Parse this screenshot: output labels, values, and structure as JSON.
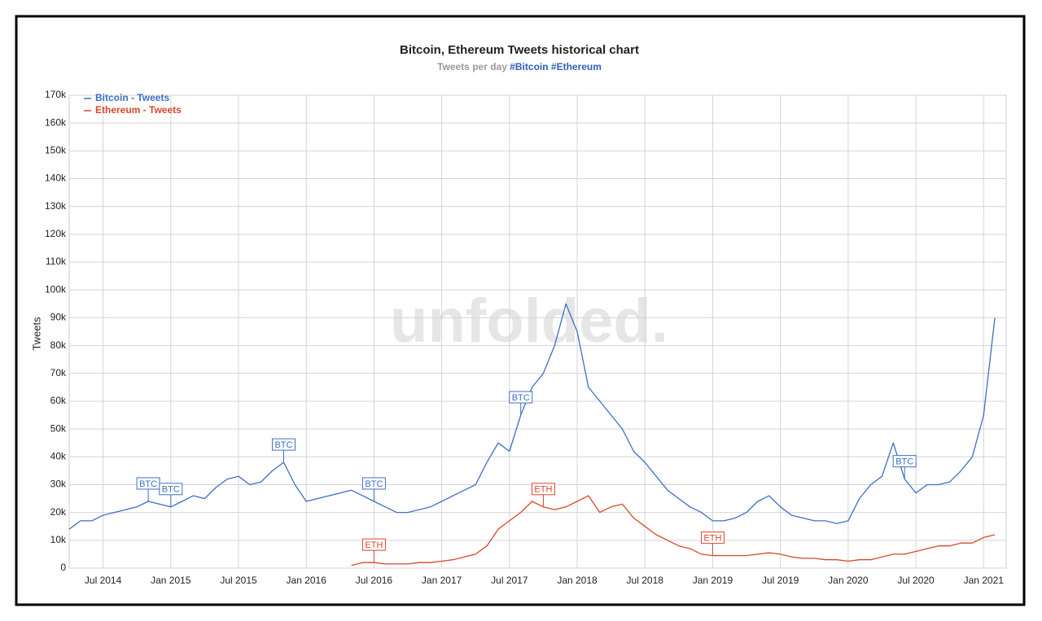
{
  "chart_data": {
    "type": "line",
    "title": "Bitcoin, Ethereum Tweets historical chart",
    "subtitle": "Tweets per day",
    "subtitle_tags": "#Bitcoin #Ethereum",
    "y_label": "Tweets",
    "watermark": "unfolded.",
    "grid": true,
    "legend": "top-left",
    "xlim": [
      "2014-04",
      "2021-03"
    ],
    "xticks": [
      {
        "value": "2014-07",
        "label": "Jul 2014"
      },
      {
        "value": "2015-01",
        "label": "Jan 2015"
      },
      {
        "value": "2015-07",
        "label": "Jul 2015"
      },
      {
        "value": "2016-01",
        "label": "Jan 2016"
      },
      {
        "value": "2016-07",
        "label": "Jul 2016"
      },
      {
        "value": "2017-01",
        "label": "Jan 2017"
      },
      {
        "value": "2017-07",
        "label": "Jul 2017"
      },
      {
        "value": "2018-01",
        "label": "Jan 2018"
      },
      {
        "value": "2018-07",
        "label": "Jul 2018"
      },
      {
        "value": "2019-01",
        "label": "Jan 2019"
      },
      {
        "value": "2019-07",
        "label": "Jul 2019"
      },
      {
        "value": "2020-01",
        "label": "Jan 2020"
      },
      {
        "value": "2020-07",
        "label": "Jul 2020"
      },
      {
        "value": "2021-01",
        "label": "Jan 2021"
      }
    ],
    "ylim": [
      0,
      170000
    ],
    "yticks": [
      0,
      {
        "value": 10000,
        "label": "10k"
      },
      {
        "value": 20000,
        "label": "20k"
      },
      {
        "value": 30000,
        "label": "30k"
      },
      {
        "value": 40000,
        "label": "40k"
      },
      {
        "value": 50000,
        "label": "50k"
      },
      {
        "value": 60000,
        "label": "60k"
      },
      {
        "value": 70000,
        "label": "70k"
      },
      {
        "value": 80000,
        "label": "80k"
      },
      {
        "value": 90000,
        "label": "90k"
      },
      {
        "value": 100000,
        "label": "100k"
      },
      {
        "value": 110000,
        "label": "110k"
      },
      {
        "value": 120000,
        "label": "120k"
      },
      {
        "value": 130000,
        "label": "130k"
      },
      {
        "value": 140000,
        "label": "140k"
      },
      {
        "value": 150000,
        "label": "150k"
      },
      {
        "value": 160000,
        "label": "160k"
      },
      {
        "value": 170000,
        "label": "170k"
      }
    ],
    "x": [
      "2014-04",
      "2014-05",
      "2014-06",
      "2014-07",
      "2014-08",
      "2014-09",
      "2014-10",
      "2014-11",
      "2014-12",
      "2015-01",
      "2015-02",
      "2015-03",
      "2015-04",
      "2015-05",
      "2015-06",
      "2015-07",
      "2015-08",
      "2015-09",
      "2015-10",
      "2015-11",
      "2015-12",
      "2016-01",
      "2016-02",
      "2016-03",
      "2016-04",
      "2016-05",
      "2016-06",
      "2016-07",
      "2016-08",
      "2016-09",
      "2016-10",
      "2016-11",
      "2016-12",
      "2017-01",
      "2017-02",
      "2017-03",
      "2017-04",
      "2017-05",
      "2017-06",
      "2017-07",
      "2017-08",
      "2017-09",
      "2017-10",
      "2017-11",
      "2017-12",
      "2018-01",
      "2018-02",
      "2018-03",
      "2018-04",
      "2018-05",
      "2018-06",
      "2018-07",
      "2018-08",
      "2018-09",
      "2018-10",
      "2018-11",
      "2018-12",
      "2019-01",
      "2019-02",
      "2019-03",
      "2019-04",
      "2019-05",
      "2019-06",
      "2019-07",
      "2019-08",
      "2019-09",
      "2019-10",
      "2019-11",
      "2019-12",
      "2020-01",
      "2020-02",
      "2020-03",
      "2020-04",
      "2020-05",
      "2020-06",
      "2020-07",
      "2020-08",
      "2020-09",
      "2020-10",
      "2020-11",
      "2020-12",
      "2021-01",
      "2021-02"
    ],
    "series": [
      {
        "name": "Bitcoin - Tweets",
        "color": "#3d6fc4",
        "values": [
          14000,
          17000,
          17000,
          19000,
          20000,
          21000,
          22000,
          24000,
          23000,
          22000,
          24000,
          26000,
          25000,
          29000,
          32000,
          33000,
          30000,
          31000,
          35000,
          38000,
          30000,
          24000,
          25000,
          26000,
          27000,
          28000,
          26000,
          24000,
          22000,
          20000,
          20000,
          21000,
          22000,
          24000,
          26000,
          28000,
          30000,
          38000,
          45000,
          42000,
          55000,
          65000,
          70000,
          80000,
          95000,
          85000,
          65000,
          60000,
          55000,
          50000,
          42000,
          38000,
          33000,
          28000,
          25000,
          22000,
          20000,
          17000,
          17000,
          18000,
          20000,
          24000,
          26000,
          22000,
          19000,
          18000,
          17000,
          17000,
          16000,
          17000,
          25000,
          30000,
          33000,
          45000,
          32000,
          27000,
          30000,
          30000,
          31000,
          35000,
          40000,
          55000,
          90000
        ]
      },
      {
        "name": "Ethereum - Tweets",
        "color": "#d9472b",
        "values": [
          null,
          null,
          null,
          null,
          null,
          null,
          null,
          null,
          null,
          null,
          null,
          null,
          null,
          null,
          null,
          null,
          null,
          null,
          null,
          null,
          null,
          null,
          null,
          null,
          null,
          1000,
          2000,
          2000,
          1500,
          1500,
          1500,
          2000,
          2000,
          2500,
          3000,
          4000,
          5000,
          8000,
          14000,
          17000,
          20000,
          24000,
          22000,
          21000,
          22000,
          24000,
          26000,
          20000,
          22000,
          23000,
          18000,
          15000,
          12000,
          10000,
          8000,
          7000,
          5000,
          4500,
          4500,
          4500,
          4500,
          5000,
          5500,
          5000,
          4000,
          3500,
          3500,
          3000,
          3000,
          2500,
          3000,
          3000,
          4000,
          5000,
          5000,
          6000,
          7000,
          8000,
          8000,
          9000,
          9000,
          11000,
          12000
        ]
      }
    ],
    "annotations": [
      {
        "text": "BTC",
        "x": "2014-11",
        "series": 0
      },
      {
        "text": "BTC",
        "x": "2015-01",
        "series": 0
      },
      {
        "text": "BTC",
        "x": "2015-11",
        "series": 0
      },
      {
        "text": "BTC",
        "x": "2016-07",
        "series": 0
      },
      {
        "text": "BTC",
        "x": "2017-08",
        "series": 0
      },
      {
        "text": "BTC",
        "x": "2020-06",
        "series": 0
      },
      {
        "text": "ETH",
        "x": "2016-07",
        "series": 1
      },
      {
        "text": "ETH",
        "x": "2017-10",
        "series": 1
      },
      {
        "text": "ETH",
        "x": "2019-01",
        "series": 1
      }
    ]
  }
}
